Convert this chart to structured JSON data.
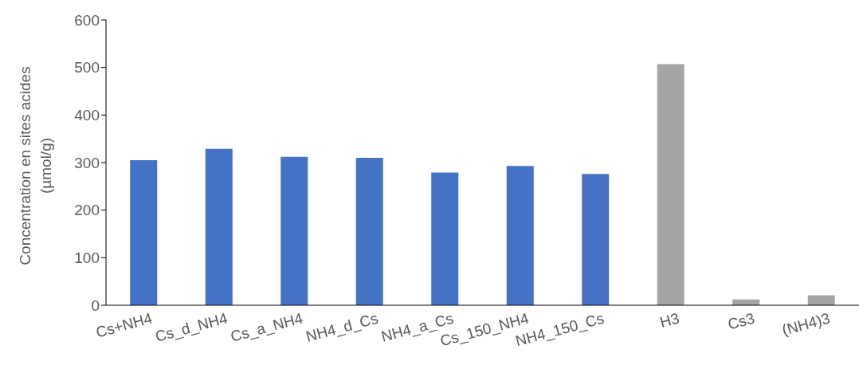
{
  "chart_data": {
    "type": "bar",
    "ylabel": "Concentration en sites acides (µmol/g)",
    "categories": [
      "Cs+NH4",
      "Cs_d_NH4",
      "Cs_a_NH4",
      "NH4_d_Cs",
      "NH4_a_Cs",
      "Cs_150_NH4",
      "NH4_150_Cs",
      "H3",
      "Cs3",
      "(NH4)3"
    ],
    "values": [
      305,
      329,
      312,
      310,
      279,
      293,
      276,
      507,
      12,
      21
    ],
    "colors": [
      "#4472c4",
      "#4472c4",
      "#4472c4",
      "#4472c4",
      "#4472c4",
      "#4472c4",
      "#4472c4",
      "#a5a5a5",
      "#a5a5a5",
      "#a5a5a5"
    ],
    "ylim": [
      0,
      600
    ],
    "yticks": [
      0,
      100,
      200,
      300,
      400,
      500,
      600
    ],
    "grid": false,
    "legend": false
  }
}
